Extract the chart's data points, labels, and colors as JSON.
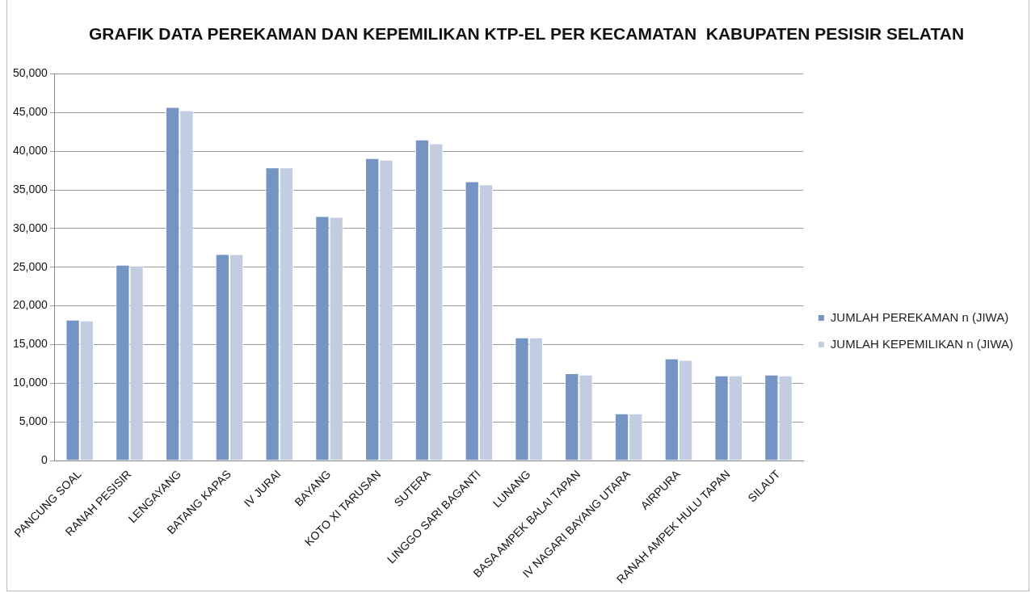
{
  "chart_data": {
    "type": "bar",
    "title": "GRAFIK DATA PEREKAMAN DAN KEPEMILIKAN KTP-EL PER KECAMATAN  KABUPATEN PESISIR SELATAN",
    "categories": [
      "PANCUNG SOAL",
      "RANAH PESISIR",
      "LENGAYANG",
      "BATANG KAPAS",
      "IV JURAI",
      "BAYANG",
      "KOTO XI TARUSAN",
      "SUTERA",
      "LINGGO SARI BAGANTI",
      "LUNANG",
      "BASA AMPEK BALAI TAPAN",
      "IV NAGARI BAYANG UTARA",
      "AIRPURA",
      "RANAH AMPEK HULU TAPAN",
      "SILAUT"
    ],
    "series": [
      {
        "name": "JUMLAH PEREKAMAN n (JIWA)",
        "color": "#7494c4",
        "values": [
          18200,
          25300,
          45700,
          26700,
          37900,
          31600,
          39100,
          41500,
          36100,
          15900,
          11300,
          6100,
          13200,
          11000,
          11100
        ]
      },
      {
        "name": "JUMLAH KEPEMILIKAN n (JIWA)",
        "color": "#c3cde2",
        "values": [
          18100,
          25200,
          45300,
          26700,
          37900,
          31500,
          38900,
          41000,
          35700,
          15900,
          11100,
          6100,
          13000,
          11000,
          11000
        ]
      }
    ],
    "ylim": [
      0,
      50000
    ],
    "yticks": [
      0,
      {
        "value": 5000,
        "label": "5,000"
      },
      {
        "value": 10000,
        "label": "10,000"
      },
      {
        "value": 15000,
        "label": "15,000"
      },
      {
        "value": 20000,
        "label": "20,000"
      },
      {
        "value": 25000,
        "label": "25,000"
      },
      {
        "value": 30000,
        "label": "30,000"
      },
      {
        "value": 35000,
        "label": "35,000"
      },
      {
        "value": 40000,
        "label": "40,000"
      },
      {
        "value": 45000,
        "label": "45,000"
      },
      {
        "value": 50000,
        "label": "50,000"
      }
    ],
    "grid": "y",
    "legend": "right"
  }
}
